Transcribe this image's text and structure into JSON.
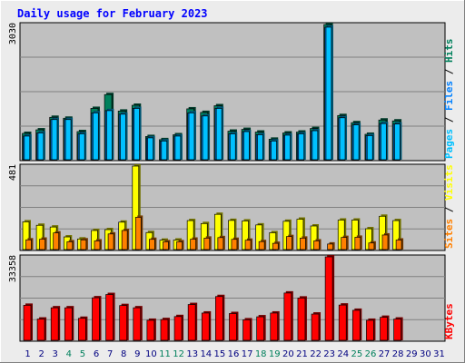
{
  "chart_data": [
    {
      "type": "bar",
      "title": "Daily usage for February 2023",
      "ymax_label": "3030",
      "legend": [
        "Pages",
        "Files",
        "Hits"
      ],
      "categories": [
        "1",
        "2",
        "3",
        "4",
        "5",
        "6",
        "7",
        "8",
        "9",
        "10",
        "11",
        "12",
        "13",
        "14",
        "15",
        "16",
        "17",
        "18",
        "19",
        "20",
        "21",
        "22",
        "23",
        "24",
        "25",
        "26",
        "27",
        "28",
        "29",
        "30",
        "31"
      ],
      "weekend_days": [
        4,
        5,
        11,
        12,
        18,
        19,
        25,
        26
      ],
      "ylim": [
        0,
        3030
      ],
      "series": [
        {
          "name": "Hits",
          "values": [
            590,
            670,
            950,
            930,
            630,
            1150,
            1460,
            1090,
            1220,
            520,
            450,
            560,
            1140,
            1060,
            1210,
            640,
            680,
            620,
            460,
            600,
            620,
            700,
            3030,
            990,
            830,
            570,
            890,
            870,
            0,
            0,
            0
          ]
        },
        {
          "name": "Files",
          "values": [
            530,
            600,
            900,
            900,
            580,
            1050,
            1100,
            1020,
            1150,
            490,
            420,
            530,
            1050,
            980,
            1150,
            580,
            630,
            560,
            420,
            550,
            580,
            650,
            2970,
            940,
            780,
            540,
            810,
            800,
            0,
            0,
            0
          ]
        },
        {
          "name": "Pages",
          "values": [
            530,
            600,
            900,
            900,
            580,
            1050,
            1100,
            1020,
            1150,
            490,
            420,
            530,
            1050,
            980,
            1150,
            580,
            630,
            560,
            420,
            550,
            580,
            650,
            2970,
            940,
            780,
            540,
            810,
            800,
            0,
            0,
            0
          ]
        }
      ]
    },
    {
      "type": "bar",
      "ymax_label": "481",
      "legend": [
        "Sites",
        "Visits"
      ],
      "ylim": [
        0,
        481
      ],
      "series": [
        {
          "name": "Visits",
          "values": [
            160,
            140,
            130,
            73,
            61,
            110,
            115,
            158,
            481,
            98,
            54,
            55,
            167,
            150,
            203,
            168,
            165,
            142,
            97,
            163,
            175,
            136,
            0,
            170,
            170,
            120,
            192,
            167,
            0,
            0,
            0
          ]
        },
        {
          "name": "Sites",
          "values": [
            56,
            60,
            96,
            45,
            56,
            50,
            90,
            110,
            186,
            59,
            45,
            45,
            60,
            66,
            69,
            59,
            54,
            46,
            36,
            75,
            66,
            50,
            32,
            70,
            71,
            38,
            84,
            55,
            0,
            0,
            0
          ]
        }
      ]
    },
    {
      "type": "bar",
      "ymax_label": "33358",
      "legend": [
        "KBytes"
      ],
      "ylim": [
        0,
        33358
      ],
      "series": [
        {
          "name": "KBytes",
          "values": [
            14000,
            8500,
            13000,
            13000,
            8800,
            17000,
            18300,
            13900,
            13000,
            8000,
            8300,
            9500,
            14300,
            10900,
            17500,
            10700,
            8200,
            9400,
            10900,
            18900,
            16900,
            10500,
            33358,
            14100,
            12000,
            8000,
            9200,
            8500,
            0,
            0,
            0
          ]
        }
      ]
    }
  ],
  "colors": {
    "hits": "#00805c",
    "files": "#0080ff",
    "pages": "#00c0ff",
    "visits": "#ffff00",
    "sites": "#ff8000",
    "kbytes": "#ff0000",
    "weekend": "#00805c",
    "weekday": "#000080",
    "title": "#0000ff"
  }
}
